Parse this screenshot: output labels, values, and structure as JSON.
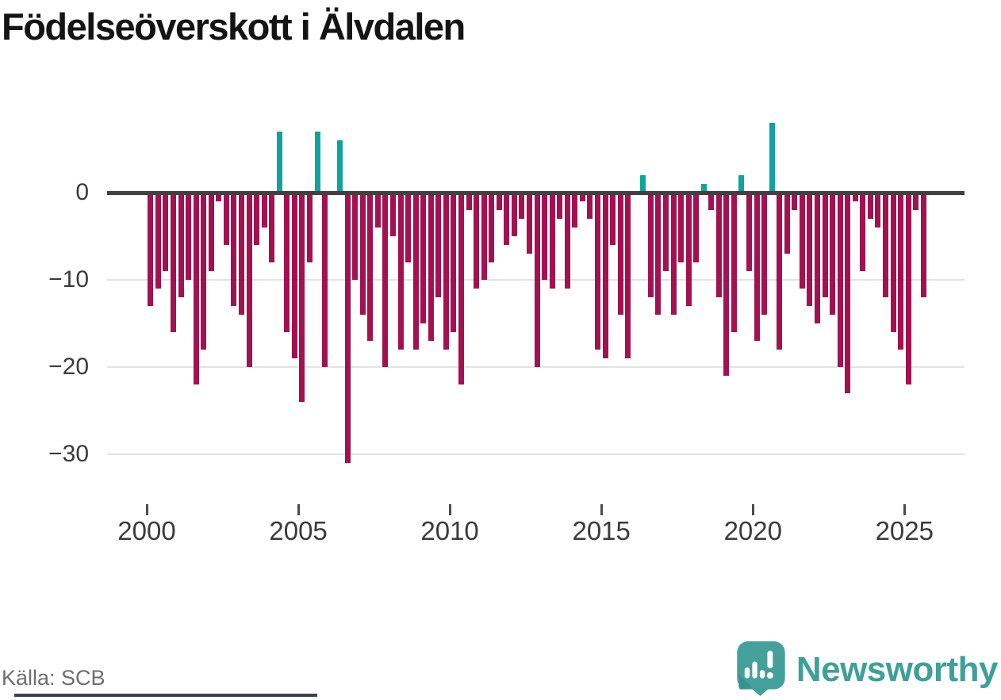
{
  "title": "Födelseöverskott i Älvdalen",
  "y_axis": {
    "labels": [
      "0",
      "−10",
      "−20",
      "−30"
    ]
  },
  "x_axis": {
    "labels": [
      "2000",
      "2005",
      "2010",
      "2015",
      "2020",
      "2025"
    ]
  },
  "source": "Källa: SCB",
  "branding": {
    "wordmark": "Newsworthy"
  },
  "colors": {
    "negative": "#a31150",
    "positive": "#0fa3a0",
    "zero_line": "#404040",
    "grid": "#e3e3e3",
    "title": "#141414",
    "axis_text": "#3b3b3b",
    "source_text": "#6e6e6e",
    "brand": "#3f9f99",
    "brand_dark": "#37948d",
    "bottom_strip": "#3a4252"
  },
  "chart_data": {
    "type": "bar",
    "title": "Födelseöverskott i Älvdalen",
    "frequency": "quarterly",
    "start": {
      "year": 2000,
      "quarter": 1
    },
    "end": {
      "year": 2025,
      "quarter": 3
    },
    "values": [
      -13,
      -11,
      -9,
      -16,
      -12,
      -10,
      -22,
      -18,
      -9,
      -1,
      -6,
      -13,
      -14,
      -20,
      -6,
      -4,
      -8,
      7,
      -16,
      -19,
      -24,
      -8,
      7,
      -20,
      0,
      6,
      -31,
      -10,
      -14,
      -17,
      -4,
      -20,
      -5,
      -18,
      -8,
      -18,
      -15,
      -17,
      -12,
      -18,
      -16,
      -22,
      -2,
      -11,
      -10,
      -8,
      -2,
      -6,
      -5,
      -3,
      -7,
      -20,
      -10,
      -11,
      -3,
      -11,
      -4,
      -1,
      -3,
      -18,
      -19,
      -6,
      -14,
      -19,
      0,
      2,
      -12,
      -14,
      -9,
      -14,
      -8,
      -13,
      -8,
      1,
      -2,
      -12,
      -21,
      -16,
      2,
      -9,
      -17,
      -14,
      8,
      -18,
      -7,
      -2,
      -11,
      -13,
      -15,
      -12,
      -14,
      -20,
      -23,
      -1,
      -9,
      -3,
      -4,
      -12,
      -16,
      -18,
      -22,
      -2,
      -12
    ],
    "x_tick_labels": [
      "2000",
      "2005",
      "2010",
      "2015",
      "2020",
      "2025"
    ],
    "x_ticks_every_n_years": 5,
    "y_ticks": [
      0,
      -10,
      -20,
      -30
    ],
    "ylim": [
      -33,
      9
    ],
    "bar_color_negative": "#a31150",
    "bar_color_positive": "#0fa3a0",
    "grid": "horizontal",
    "legend": "none",
    "source": "Källa: SCB"
  }
}
